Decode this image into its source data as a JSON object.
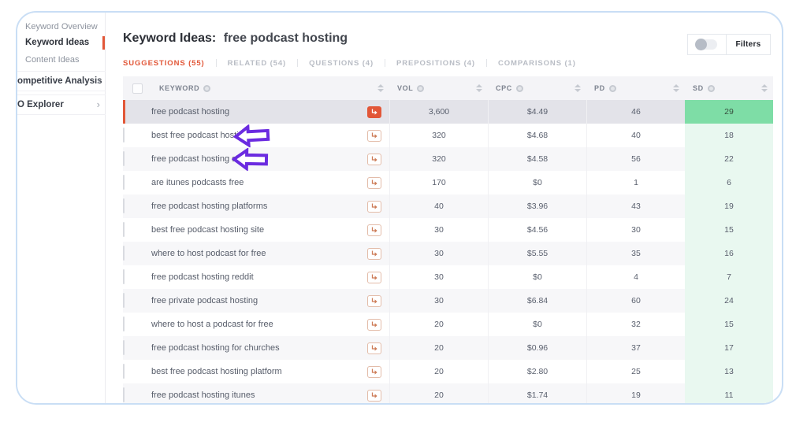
{
  "sidebar": {
    "items": [
      {
        "label": "Keyword Overview",
        "active": false
      },
      {
        "label": "Keyword Ideas",
        "active": true
      },
      {
        "label": "Content Ideas",
        "active": false
      }
    ],
    "groups": [
      {
        "label": "ompetitive Analysis",
        "chevron": "›"
      },
      {
        "label": "O Explorer",
        "chevron": "›"
      }
    ]
  },
  "header": {
    "title_prefix": "Keyword Ideas:",
    "title_query": "free podcast hosting",
    "filters_label": "Filters",
    "filters_toggle_state": "off"
  },
  "tabs": [
    {
      "label": "SUGGESTIONS (55)",
      "active": true
    },
    {
      "label": "RELATED (54)",
      "active": false
    },
    {
      "label": "QUESTIONS (4)",
      "active": false
    },
    {
      "label": "PREPOSITIONS (4)",
      "active": false
    },
    {
      "label": "COMPARISONS (1)",
      "active": false
    }
  ],
  "table": {
    "columns": [
      "KEYWORD",
      "VOL",
      "CPC",
      "PD",
      "SD"
    ],
    "rows": [
      {
        "keyword": "free podcast hosting",
        "vol": "3,600",
        "cpc": "$4.49",
        "pd": "46",
        "sd": "29",
        "selected": true,
        "annotated": false
      },
      {
        "keyword": "best free podcast hosting",
        "vol": "320",
        "cpc": "$4.68",
        "pd": "40",
        "sd": "18",
        "selected": false,
        "annotated": true
      },
      {
        "keyword": "free podcast hosting sites",
        "vol": "320",
        "cpc": "$4.58",
        "pd": "56",
        "sd": "22",
        "selected": false,
        "annotated": true
      },
      {
        "keyword": "are itunes podcasts free",
        "vol": "170",
        "cpc": "$0",
        "pd": "1",
        "sd": "6",
        "selected": false,
        "annotated": false
      },
      {
        "keyword": "free podcast hosting platforms",
        "vol": "40",
        "cpc": "$3.96",
        "pd": "43",
        "sd": "19",
        "selected": false,
        "annotated": false
      },
      {
        "keyword": "best free podcast hosting site",
        "vol": "30",
        "cpc": "$4.56",
        "pd": "30",
        "sd": "15",
        "selected": false,
        "annotated": false
      },
      {
        "keyword": "where to host podcast for free",
        "vol": "30",
        "cpc": "$5.55",
        "pd": "35",
        "sd": "16",
        "selected": false,
        "annotated": false
      },
      {
        "keyword": "free podcast hosting reddit",
        "vol": "30",
        "cpc": "$0",
        "pd": "4",
        "sd": "7",
        "selected": false,
        "annotated": false
      },
      {
        "keyword": "free private podcast hosting",
        "vol": "30",
        "cpc": "$6.84",
        "pd": "60",
        "sd": "24",
        "selected": false,
        "annotated": false
      },
      {
        "keyword": "where to host a podcast for free",
        "vol": "20",
        "cpc": "$0",
        "pd": "32",
        "sd": "15",
        "selected": false,
        "annotated": false
      },
      {
        "keyword": "free podcast hosting for churches",
        "vol": "20",
        "cpc": "$0.96",
        "pd": "37",
        "sd": "17",
        "selected": false,
        "annotated": false
      },
      {
        "keyword": "best free podcast hosting platform",
        "vol": "20",
        "cpc": "$2.80",
        "pd": "25",
        "sd": "13",
        "selected": false,
        "annotated": false
      },
      {
        "keyword": "free podcast hosting itunes",
        "vol": "20",
        "cpc": "$1.74",
        "pd": "19",
        "sd": "11",
        "selected": false,
        "annotated": false
      }
    ]
  },
  "colors": {
    "accent_orange": "#e25738",
    "annotation_purple": "#6b2be0",
    "sd_green_light": "#e9f8f0",
    "sd_green_selected": "#7edda6",
    "card_border_blue": "#c9def5",
    "selected_row_bg": "#e3e3e9"
  }
}
